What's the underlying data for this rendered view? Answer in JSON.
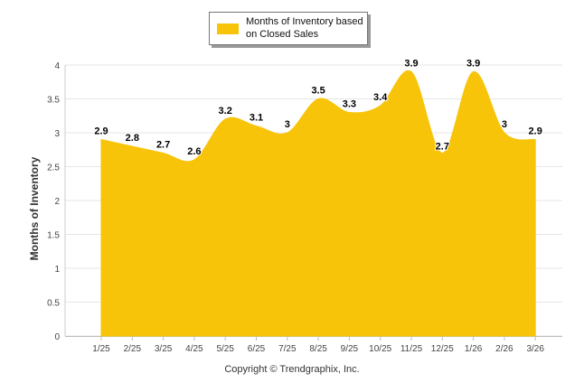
{
  "chart_data": {
    "type": "area",
    "title": "",
    "xlabel": "",
    "ylabel": "Months of Inventory",
    "ylim": [
      0,
      4
    ],
    "yticks": [
      "0",
      "0.5",
      "1",
      "1.5",
      "2",
      "2.5",
      "3",
      "3.5",
      "4"
    ],
    "categories": [
      "1/25",
      "2/25",
      "3/25",
      "4/25",
      "5/25",
      "6/25",
      "7/25",
      "8/25",
      "9/25",
      "10/25",
      "11/25",
      "12/25",
      "1/26",
      "2/26",
      "3/26"
    ],
    "series": [
      {
        "name": "Months of Inventory based on Closed Sales",
        "values": [
          2.9,
          2.8,
          2.7,
          2.6,
          3.2,
          3.1,
          3,
          3.5,
          3.3,
          3.4,
          3.9,
          2.7,
          3.9,
          3,
          2.9
        ],
        "labels": [
          "2.9",
          "2.8",
          "2.7",
          "2.6",
          "3.2",
          "3.1",
          "3",
          "3.5",
          "3.3",
          "3.4",
          "3.9",
          "2.7",
          "3.9",
          "3",
          "2.9"
        ],
        "color": "#f7c40a"
      }
    ],
    "grid": true,
    "legend_position": "top-center"
  },
  "footer": {
    "copyright": "Copyright © Trendgraphix, Inc."
  }
}
